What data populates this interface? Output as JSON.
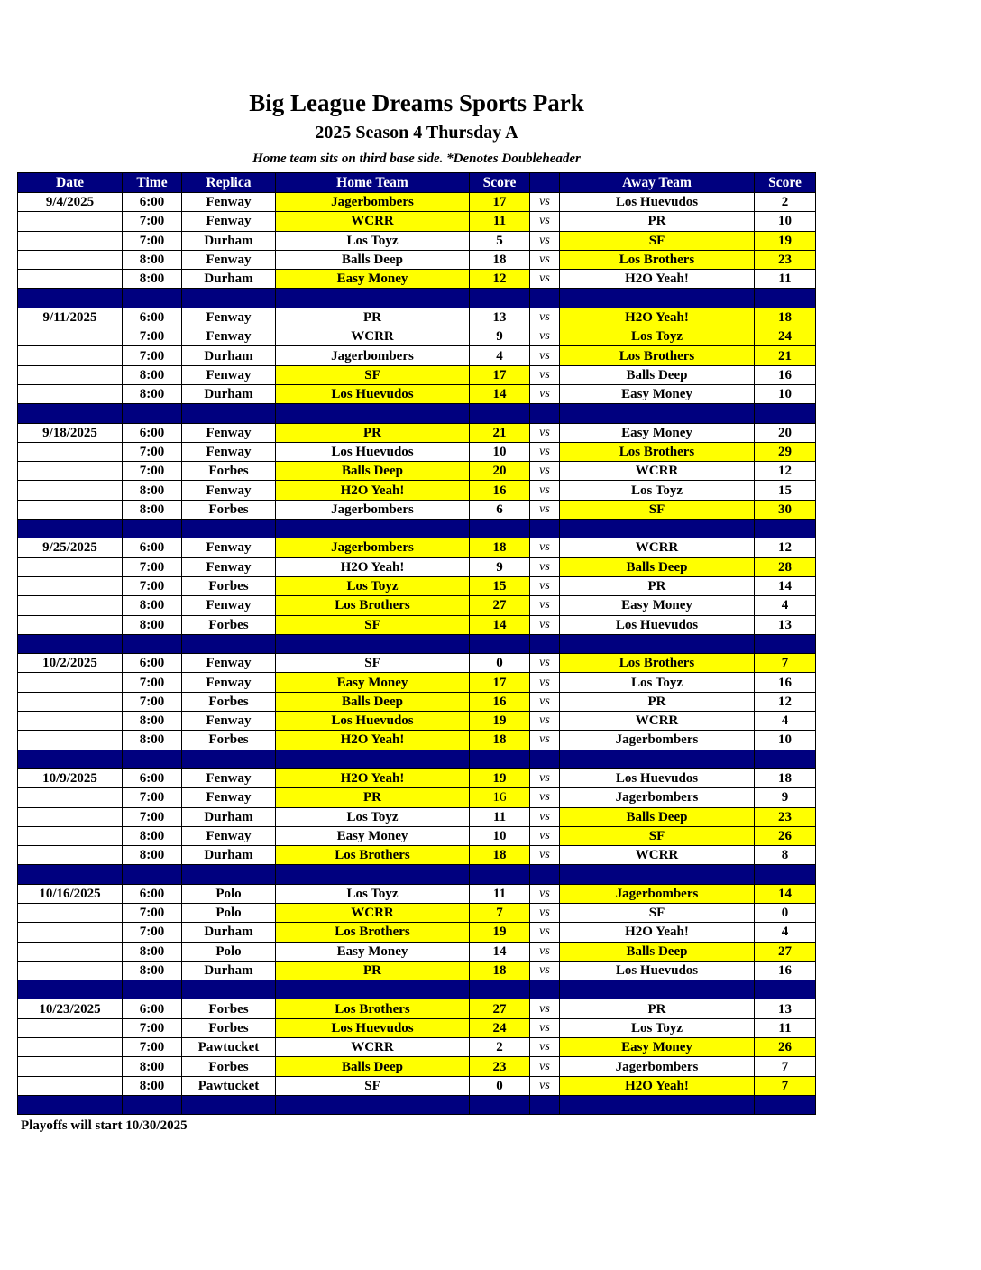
{
  "title": "Big League Dreams Sports Park",
  "subtitle": "2025 Season 4 Thursday A",
  "note": "Home team sits on third base side.  *Denotes Doubleheader",
  "headers": [
    "Date",
    "Time",
    "Replica",
    "Home Team",
    "Score",
    "",
    "Away Team",
    "Score"
  ],
  "vs_label": "vs",
  "colors": {
    "header": "#00007f",
    "winner": "#ffff00"
  },
  "weeks": [
    {
      "date": "9/4/2025",
      "games": [
        {
          "time": "6:00",
          "field": "Fenway",
          "home": "Jagerbombers",
          "hs": "17",
          "away": "Los Huevudos",
          "as": "2",
          "win": "h"
        },
        {
          "time": "7:00",
          "field": "Fenway",
          "home": "WCRR",
          "hs": "11",
          "away": "PR",
          "as": "10",
          "win": "h"
        },
        {
          "time": "7:00",
          "field": "Durham",
          "home": "Los Toyz",
          "hs": "5",
          "away": "SF",
          "as": "19",
          "win": "a"
        },
        {
          "time": "8:00",
          "field": "Fenway",
          "home": "Balls Deep",
          "hs": "18",
          "away": "Los Brothers",
          "as": "23",
          "win": "a"
        },
        {
          "time": "8:00",
          "field": "Durham",
          "home": "Easy Money",
          "hs": "12",
          "away": "H2O Yeah!",
          "as": "11",
          "win": "h"
        }
      ]
    },
    {
      "date": "9/11/2025",
      "games": [
        {
          "time": "6:00",
          "field": "Fenway",
          "home": "PR",
          "hs": "13",
          "away": "H2O Yeah!",
          "as": "18",
          "win": "a"
        },
        {
          "time": "7:00",
          "field": "Fenway",
          "home": "WCRR",
          "hs": "9",
          "away": "Los Toyz",
          "as": "24",
          "win": "a"
        },
        {
          "time": "7:00",
          "field": "Durham",
          "home": "Jagerbombers",
          "hs": "4",
          "away": "Los Brothers",
          "as": "21",
          "win": "a"
        },
        {
          "time": "8:00",
          "field": "Fenway",
          "home": "SF",
          "hs": "17",
          "away": "Balls Deep",
          "as": "16",
          "win": "h"
        },
        {
          "time": "8:00",
          "field": "Durham",
          "home": "Los Huevudos",
          "hs": "14",
          "away": "Easy Money",
          "as": "10",
          "win": "h"
        }
      ]
    },
    {
      "date": "9/18/2025",
      "games": [
        {
          "time": "6:00",
          "field": "Fenway",
          "home": "PR",
          "hs": "21",
          "away": "Easy Money",
          "as": "20",
          "win": "h"
        },
        {
          "time": "7:00",
          "field": "Fenway",
          "home": "Los Huevudos",
          "hs": "10",
          "away": "Los Brothers",
          "as": "29",
          "win": "a"
        },
        {
          "time": "7:00",
          "field": "Forbes",
          "home": "Balls Deep",
          "hs": "20",
          "away": "WCRR",
          "as": "12",
          "win": "h"
        },
        {
          "time": "8:00",
          "field": "Fenway",
          "home": "H2O Yeah!",
          "hs": "16",
          "away": "Los Toyz",
          "as": "15",
          "win": "h"
        },
        {
          "time": "8:00",
          "field": "Forbes",
          "home": "Jagerbombers",
          "hs": "6",
          "away": "SF",
          "as": "30",
          "win": "a"
        }
      ]
    },
    {
      "date": "9/25/2025",
      "games": [
        {
          "time": "6:00",
          "field": "Fenway",
          "home": "Jagerbombers",
          "hs": "18",
          "away": "WCRR",
          "as": "12",
          "win": "h"
        },
        {
          "time": "7:00",
          "field": "Fenway",
          "home": "H2O Yeah!",
          "hs": "9",
          "away": "Balls Deep",
          "as": "28",
          "win": "a"
        },
        {
          "time": "7:00",
          "field": "Forbes",
          "home": "Los Toyz",
          "hs": "15",
          "away": "PR",
          "as": "14",
          "win": "h"
        },
        {
          "time": "8:00",
          "field": "Fenway",
          "home": "Los Brothers",
          "hs": "27",
          "away": "Easy Money",
          "as": "4",
          "win": "h"
        },
        {
          "time": "8:00",
          "field": "Forbes",
          "home": "SF",
          "hs": "14",
          "away": "Los Huevudos",
          "as": "13",
          "win": "h"
        }
      ]
    },
    {
      "date": "10/2/2025",
      "games": [
        {
          "time": "6:00",
          "field": "Fenway",
          "home": "SF",
          "hs": "0",
          "away": "Los Brothers",
          "as": "7",
          "win": "a"
        },
        {
          "time": "7:00",
          "field": "Fenway",
          "home": "Easy Money",
          "hs": "17",
          "away": "Los Toyz",
          "as": "16",
          "win": "h"
        },
        {
          "time": "7:00",
          "field": "Forbes",
          "home": "Balls Deep",
          "hs": "16",
          "away": "PR",
          "as": "12",
          "win": "h"
        },
        {
          "time": "8:00",
          "field": "Fenway",
          "home": "Los Huevudos",
          "hs": "19",
          "away": "WCRR",
          "as": "4",
          "win": "h"
        },
        {
          "time": "8:00",
          "field": "Forbes",
          "home": "H2O Yeah!",
          "hs": "18",
          "away": "Jagerbombers",
          "as": "10",
          "win": "h"
        }
      ]
    },
    {
      "date": "10/9/2025",
      "games": [
        {
          "time": "6:00",
          "field": "Fenway",
          "home": "H2O Yeah!",
          "hs": "19",
          "away": "Los Huevudos",
          "as": "18",
          "win": "h"
        },
        {
          "time": "7:00",
          "field": "Fenway",
          "home": "PR",
          "hs": "16",
          "away": "Jagerbombers",
          "as": "9",
          "win": "h",
          "light": true
        },
        {
          "time": "7:00",
          "field": "Durham",
          "home": "Los Toyz",
          "hs": "11",
          "away": "Balls Deep",
          "as": "23",
          "win": "a"
        },
        {
          "time": "8:00",
          "field": "Fenway",
          "home": "Easy Money",
          "hs": "10",
          "away": "SF",
          "as": "26",
          "win": "a"
        },
        {
          "time": "8:00",
          "field": "Durham",
          "home": "Los Brothers",
          "hs": "18",
          "away": "WCRR",
          "as": "8",
          "win": "h"
        }
      ]
    },
    {
      "date": "10/16/2025",
      "games": [
        {
          "time": "6:00",
          "field": "Polo",
          "home": "Los Toyz",
          "hs": "11",
          "away": "Jagerbombers",
          "as": "14",
          "win": "a"
        },
        {
          "time": "7:00",
          "field": "Polo",
          "home": "WCRR",
          "hs": "7",
          "away": "SF",
          "as": "0",
          "win": "h"
        },
        {
          "time": "7:00",
          "field": "Durham",
          "home": "Los Brothers",
          "hs": "19",
          "away": "H2O Yeah!",
          "as": "4",
          "win": "h"
        },
        {
          "time": "8:00",
          "field": "Polo",
          "home": "Easy Money",
          "hs": "14",
          "away": "Balls Deep",
          "as": "27",
          "win": "a"
        },
        {
          "time": "8:00",
          "field": "Durham",
          "home": "PR",
          "hs": "18",
          "away": "Los Huevudos",
          "as": "16",
          "win": "h"
        }
      ]
    },
    {
      "date": "10/23/2025",
      "games": [
        {
          "time": "6:00",
          "field": "Forbes",
          "home": "Los Brothers",
          "hs": "27",
          "away": "PR",
          "as": "13",
          "win": "h"
        },
        {
          "time": "7:00",
          "field": "Forbes",
          "home": "Los Huevudos",
          "hs": "24",
          "away": "Los Toyz",
          "as": "11",
          "win": "h"
        },
        {
          "time": "7:00",
          "field": "Pawtucket",
          "home": "WCRR",
          "hs": "2",
          "away": "Easy Money",
          "as": "26",
          "win": "a"
        },
        {
          "time": "8:00",
          "field": "Forbes",
          "home": "Balls Deep",
          "hs": "23",
          "away": "Jagerbombers",
          "as": "7",
          "win": "h"
        },
        {
          "time": "8:00",
          "field": "Pawtucket",
          "home": "SF",
          "hs": "0",
          "away": "H2O Yeah!",
          "as": "7",
          "win": "a"
        }
      ]
    }
  ],
  "footer": "Playoffs will start 10/30/2025"
}
